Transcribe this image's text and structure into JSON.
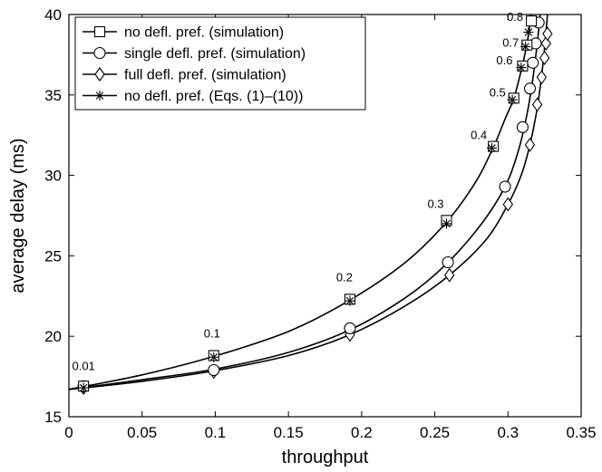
{
  "chart_data": {
    "type": "line",
    "xlabel": "throughput",
    "ylabel": "average delay (ms)",
    "xlim": [
      0,
      0.35
    ],
    "ylim": [
      15,
      40
    ],
    "xticks": [
      0,
      0.05,
      0.1,
      0.15,
      0.2,
      0.25,
      0.3,
      0.35
    ],
    "xtick_labels": [
      "0",
      "0.05",
      "0.1",
      "0.15",
      "0.2",
      "0.25",
      "0.3",
      "0.35"
    ],
    "yticks": [
      15,
      20,
      25,
      30,
      35,
      40
    ],
    "ytick_labels": [
      "15",
      "20",
      "25",
      "30",
      "35",
      "40"
    ],
    "legend_position": "top-left",
    "series": [
      {
        "name": "no defl. pref. (simulation)",
        "marker": "square",
        "x": [
          0.01,
          0.099,
          0.192,
          0.258,
          0.29,
          0.304,
          0.31,
          0.313,
          0.316
        ],
        "y": [
          16.9,
          18.8,
          22.3,
          27.2,
          31.8,
          34.8,
          36.8,
          38.1,
          39.6
        ]
      },
      {
        "name": "single defl. pref. (simulation)",
        "marker": "circle",
        "x": [
          0.01,
          0.099,
          0.192,
          0.259,
          0.298,
          0.31,
          0.315,
          0.317,
          0.319,
          0.321
        ],
        "y": [
          16.9,
          17.9,
          20.5,
          24.6,
          29.3,
          33.0,
          35.4,
          37.0,
          38.2,
          39.5
        ]
      },
      {
        "name": "full defl. pref. (simulation)",
        "marker": "diamond",
        "x": [
          0.01,
          0.099,
          0.192,
          0.26,
          0.3,
          0.315,
          0.32,
          0.323,
          0.325,
          0.326,
          0.327
        ],
        "y": [
          16.8,
          17.8,
          20.1,
          23.8,
          28.2,
          31.9,
          34.4,
          36.1,
          37.3,
          38.2,
          38.8
        ]
      },
      {
        "name": "no defl. pref. (Eqs. (1)–(10))",
        "marker": "star",
        "x": [
          0.01,
          0.099,
          0.192,
          0.258,
          0.289,
          0.303,
          0.309,
          0.312,
          0.314
        ],
        "y": [
          16.8,
          18.7,
          22.2,
          27.0,
          31.7,
          34.7,
          36.7,
          38.0,
          38.9
        ]
      }
    ],
    "curves": [
      {
        "x": [
          0,
          0.05,
          0.099,
          0.15,
          0.192,
          0.23,
          0.258,
          0.278,
          0.29,
          0.298,
          0.304,
          0.309,
          0.313,
          0.316
        ],
        "y": [
          16.7,
          17.6,
          18.75,
          20.3,
          22.25,
          24.6,
          27.1,
          29.6,
          31.75,
          33.5,
          34.8,
          36.5,
          38.2,
          40
        ]
      },
      {
        "x": [
          0,
          0.05,
          0.099,
          0.15,
          0.192,
          0.23,
          0.258,
          0.282,
          0.298,
          0.307,
          0.313,
          0.317,
          0.32,
          0.322
        ],
        "y": [
          16.7,
          17.3,
          17.95,
          19.0,
          20.4,
          22.4,
          24.5,
          27.0,
          29.3,
          31.5,
          33.8,
          36.0,
          38.2,
          40
        ]
      },
      {
        "x": [
          0,
          0.05,
          0.099,
          0.15,
          0.192,
          0.23,
          0.26,
          0.285,
          0.3,
          0.309,
          0.315,
          0.32,
          0.324,
          0.327
        ],
        "y": [
          16.7,
          17.2,
          17.85,
          18.8,
          20.1,
          21.9,
          23.8,
          26.0,
          28.2,
          30.0,
          31.9,
          34.2,
          37.0,
          40
        ]
      }
    ],
    "annotations": [
      {
        "text": "0.01",
        "x": 0.01,
        "y": 16.9,
        "dx": 0,
        "dy": -18
      },
      {
        "text": "0.1",
        "x": 0.099,
        "y": 18.8,
        "dx": -2,
        "dy": -20
      },
      {
        "text": "0.2",
        "x": 0.192,
        "y": 22.3,
        "dx": -6,
        "dy": -20
      },
      {
        "text": "0.3",
        "x": 0.258,
        "y": 27.2,
        "dx": -12,
        "dy": -14
      },
      {
        "text": "0.4",
        "x": 0.29,
        "y": 31.8,
        "dx": -16,
        "dy": -8
      },
      {
        "text": "0.5",
        "x": 0.304,
        "y": 34.8,
        "dx": -18,
        "dy": -2
      },
      {
        "text": "0.6",
        "x": 0.31,
        "y": 36.8,
        "dx": -20,
        "dy": -2
      },
      {
        "text": "0.7",
        "x": 0.313,
        "y": 38.1,
        "dx": -18,
        "dy": 2
      },
      {
        "text": "0.8",
        "x": 0.316,
        "y": 39.6,
        "dx": -18,
        "dy": 0
      }
    ]
  }
}
